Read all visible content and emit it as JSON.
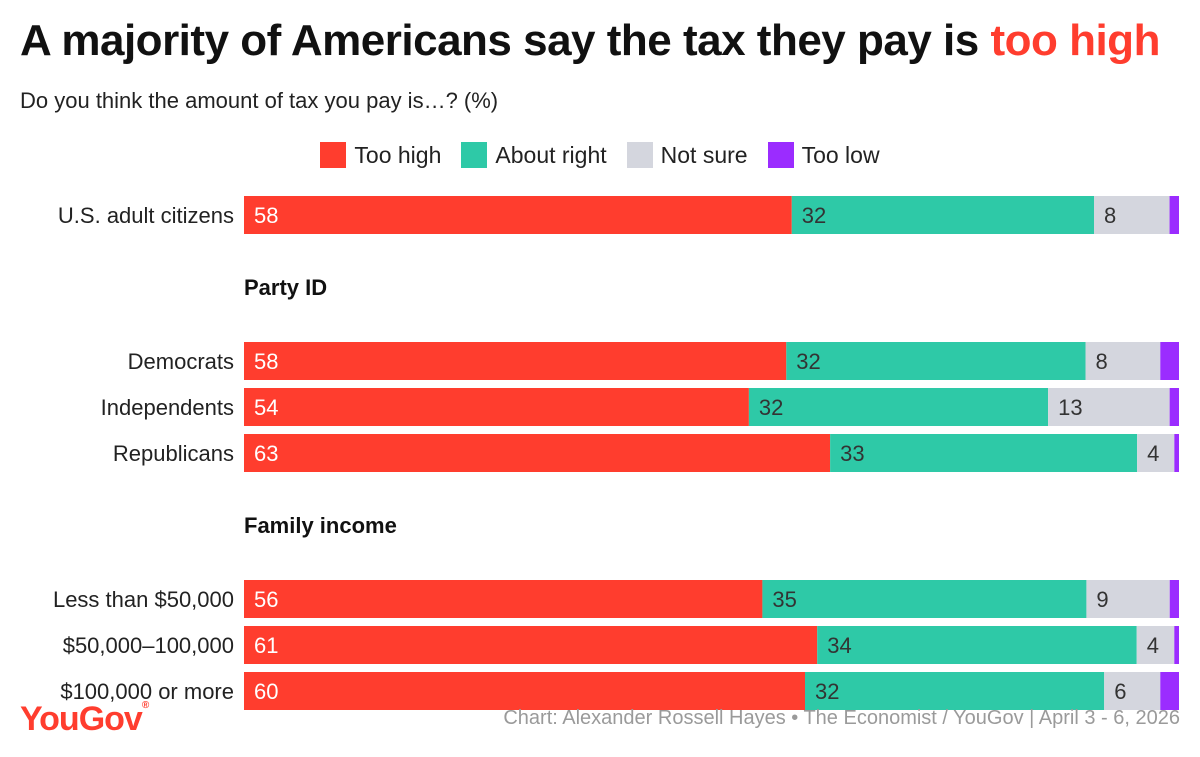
{
  "title_main": "A majority of Americans say the tax they pay is ",
  "title_highlight": "too high",
  "subtitle": "Do you think the amount of tax you pay is…? (%)",
  "colors": {
    "too_high": "#ff3d2e",
    "about_right": "#2ec9a7",
    "not_sure": "#d4d6de",
    "too_low": "#9b2cff"
  },
  "chart_data": {
    "type": "bar",
    "orientation": "horizontal-stacked",
    "legend": [
      "Too high",
      "About right",
      "Not sure",
      "Too low"
    ],
    "legend_position": "top-center",
    "xlim": [
      0,
      100
    ],
    "groups": [
      {
        "label": "",
        "rows": [
          {
            "label": "U.S. adult citizens",
            "values": [
              58,
              32,
              8,
              1
            ]
          }
        ]
      },
      {
        "label": "Party ID",
        "rows": [
          {
            "label": "Democrats",
            "values": [
              58,
              32,
              8,
              2
            ]
          },
          {
            "label": "Independents",
            "values": [
              54,
              32,
              13,
              1
            ]
          },
          {
            "label": "Republicans",
            "values": [
              63,
              33,
              4,
              0.5
            ]
          }
        ]
      },
      {
        "label": "Family income",
        "rows": [
          {
            "label": "Less than $50,000",
            "values": [
              56,
              35,
              9,
              1
            ]
          },
          {
            "label": "$50,000–100,000",
            "values": [
              61,
              34,
              4,
              0.5
            ]
          },
          {
            "label": "$100,000 or more",
            "values": [
              60,
              32,
              6,
              2
            ]
          }
        ]
      }
    ]
  },
  "footer": {
    "logo": "YouGov",
    "credit": "Chart: Alexander Rossell Hayes • The Economist / YouGov | April 3 - 6, 2026"
  }
}
